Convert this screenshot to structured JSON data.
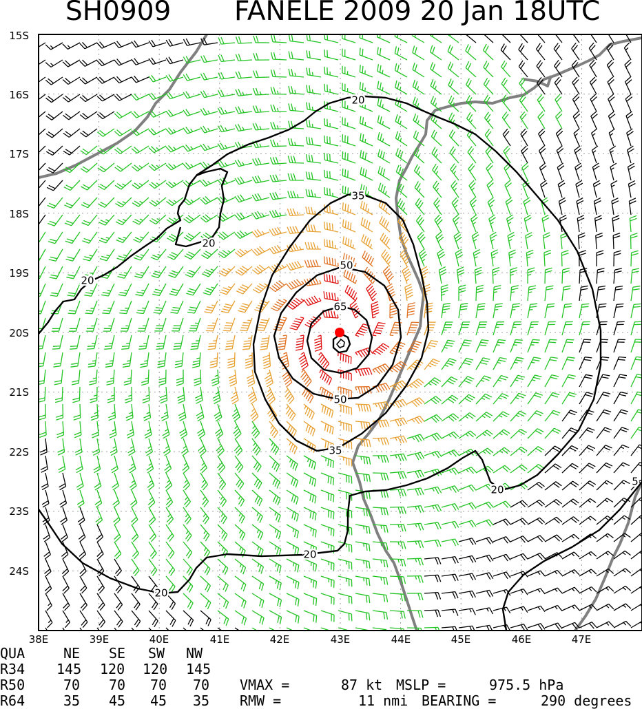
{
  "title": {
    "storm_id": "SH0909",
    "name_time": "FANELE 2009 20 Jan 18UTC"
  },
  "map": {
    "lon_labels": [
      "38E",
      "39E",
      "40E",
      "41E",
      "42E",
      "43E",
      "44E",
      "45E",
      "46E",
      "47E"
    ],
    "lat_labels": [
      "15S",
      "16S",
      "17S",
      "18S",
      "19S",
      "20S",
      "21S",
      "22S",
      "23S",
      "24S"
    ],
    "lon_range": [
      38,
      48
    ],
    "lat_range": [
      -15,
      -25
    ],
    "center": {
      "lon": 43.0,
      "lat": -19.95,
      "color": "#ff0000"
    },
    "contour_labels": [
      "20",
      "20",
      "20",
      "20",
      "20",
      "20",
      "35",
      "35",
      "50",
      "50",
      "65",
      "5"
    ],
    "colors": {
      "land_outline": "#808080",
      "contour": "#000000",
      "barb_lt20": "#000000",
      "barb_20_34": "#22c422",
      "barb_35_49": "#e8a030",
      "barb_50_64": "#e07020",
      "barb_65plus": "#e01010"
    },
    "grid": true
  },
  "table": {
    "header": [
      "QUA",
      "NE",
      "SE",
      "SW",
      "NW"
    ],
    "rows": [
      [
        "R34",
        "145",
        "120",
        "120",
        "145"
      ],
      [
        "R50",
        "70",
        "70",
        "70",
        "70"
      ],
      [
        "R64",
        "35",
        "45",
        "45",
        "35"
      ]
    ],
    "vmax_label": "VMAX =",
    "vmax_value": "87 kt",
    "mslp_label": "MSLP =",
    "mslp_value": "975.5 hPa",
    "rmw_label": "RMW =",
    "rmw_value": "11 nmi",
    "bearing_label": "BEARING =",
    "bearing_value": "290 degrees"
  }
}
